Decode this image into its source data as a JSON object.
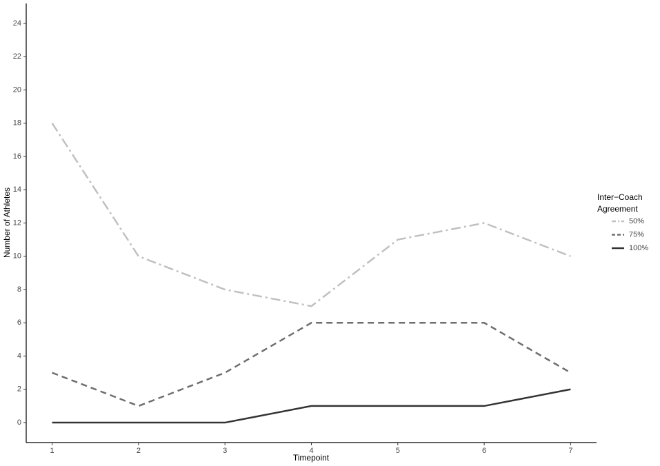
{
  "chart_data": {
    "type": "line",
    "x_label": "Timepoint",
    "y_label": "Number of Athletes",
    "x": [
      1,
      2,
      3,
      4,
      5,
      6,
      7
    ],
    "xlim": [
      0.7,
      7.3
    ],
    "xticks": [
      1,
      2,
      3,
      4,
      5,
      6,
      7
    ],
    "ylim": [
      -1.2,
      25.2
    ],
    "yticks": [
      0,
      2,
      4,
      6,
      8,
      10,
      12,
      14,
      16,
      18,
      20,
      22,
      24
    ],
    "grid": false,
    "legend_title": "Inter−Coach Agreement",
    "legend_position": "right",
    "series": [
      {
        "name": "50%",
        "color": "#c0c0c0",
        "linestyle": "dashdot",
        "values": [
          18,
          10,
          8,
          7,
          11,
          12,
          10
        ]
      },
      {
        "name": "75%",
        "color": "#6e6e6e",
        "linestyle": "dashed",
        "values": [
          3,
          1,
          3,
          6,
          6,
          6,
          3
        ]
      },
      {
        "name": "100%",
        "color": "#333333",
        "linestyle": "solid",
        "values": [
          0,
          0,
          0,
          1,
          1,
          1,
          2
        ]
      }
    ]
  }
}
